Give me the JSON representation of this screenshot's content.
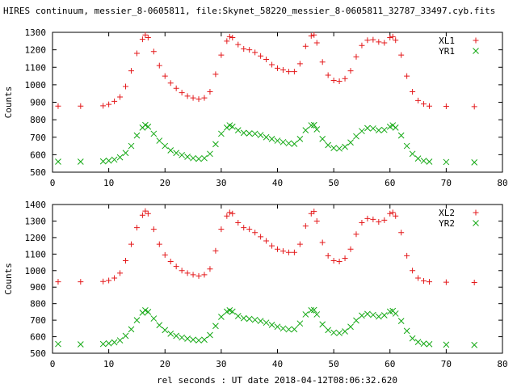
{
  "figure": {
    "title": "HIRES continuum, messier_8-0605811, file:Skynet_58220_messier_8-0605811_32787_33497.cyb.fits",
    "xlabel": "rel seconds : UT date 2018-04-12T08:06:32.620"
  },
  "colors": {
    "red": "#e41a1c",
    "green": "#13a813"
  },
  "chart_data": [
    {
      "type": "scatter",
      "ylabel": "Counts",
      "xlim": [
        0,
        80
      ],
      "ylim": [
        500,
        1300
      ],
      "xticks": [
        0,
        10,
        20,
        30,
        40,
        50,
        60,
        70,
        80
      ],
      "yticks": [
        500,
        600,
        700,
        800,
        900,
        1000,
        1100,
        1200,
        1300
      ],
      "grid": false,
      "legend_position": "top-right",
      "series": [
        {
          "name": "XL1",
          "marker": "plus",
          "color": "#e41a1c",
          "points": [
            [
              1,
              878
            ],
            [
              5,
              878
            ],
            [
              9,
              880
            ],
            [
              10,
              888
            ],
            [
              11,
              905
            ],
            [
              12,
              930
            ],
            [
              13,
              990
            ],
            [
              14,
              1080
            ],
            [
              15,
              1180
            ],
            [
              16,
              1260
            ],
            [
              16.5,
              1285
            ],
            [
              17,
              1270
            ],
            [
              18,
              1190
            ],
            [
              19,
              1110
            ],
            [
              20,
              1050
            ],
            [
              21,
              1010
            ],
            [
              22,
              980
            ],
            [
              23,
              955
            ],
            [
              24,
              935
            ],
            [
              25,
              925
            ],
            [
              26,
              918
            ],
            [
              27,
              925
            ],
            [
              28,
              960
            ],
            [
              29,
              1060
            ],
            [
              30,
              1170
            ],
            [
              31,
              1250
            ],
            [
              31.5,
              1275
            ],
            [
              32,
              1270
            ],
            [
              33,
              1230
            ],
            [
              34,
              1205
            ],
            [
              35,
              1200
            ],
            [
              36,
              1185
            ],
            [
              37,
              1165
            ],
            [
              38,
              1145
            ],
            [
              39,
              1115
            ],
            [
              40,
              1095
            ],
            [
              41,
              1085
            ],
            [
              42,
              1075
            ],
            [
              43,
              1075
            ],
            [
              44,
              1120
            ],
            [
              45,
              1220
            ],
            [
              46,
              1280
            ],
            [
              46.5,
              1285
            ],
            [
              47,
              1240
            ],
            [
              48,
              1130
            ],
            [
              49,
              1055
            ],
            [
              50,
              1025
            ],
            [
              51,
              1020
            ],
            [
              52,
              1035
            ],
            [
              53,
              1080
            ],
            [
              54,
              1160
            ],
            [
              55,
              1225
            ],
            [
              56,
              1255
            ],
            [
              57,
              1258
            ],
            [
              58,
              1245
            ],
            [
              59,
              1240
            ],
            [
              60,
              1270
            ],
            [
              60.5,
              1275
            ],
            [
              61,
              1255
            ],
            [
              62,
              1170
            ],
            [
              63,
              1050
            ],
            [
              64,
              960
            ],
            [
              65,
              910
            ],
            [
              66,
              890
            ],
            [
              67,
              878
            ],
            [
              70,
              877
            ],
            [
              75,
              875
            ]
          ]
        },
        {
          "name": "YR1",
          "marker": "x",
          "color": "#13a813",
          "points": [
            [
              1,
              560
            ],
            [
              5,
              560
            ],
            [
              9,
              562
            ],
            [
              10,
              566
            ],
            [
              11,
              572
            ],
            [
              12,
              585
            ],
            [
              13,
              610
            ],
            [
              14,
              650
            ],
            [
              15,
              710
            ],
            [
              16,
              755
            ],
            [
              16.5,
              770
            ],
            [
              17,
              760
            ],
            [
              18,
              720
            ],
            [
              19,
              680
            ],
            [
              20,
              650
            ],
            [
              21,
              625
            ],
            [
              22,
              610
            ],
            [
              23,
              598
            ],
            [
              24,
              588
            ],
            [
              25,
              580
            ],
            [
              26,
              576
            ],
            [
              27,
              580
            ],
            [
              28,
              605
            ],
            [
              29,
              660
            ],
            [
              30,
              720
            ],
            [
              31,
              755
            ],
            [
              31.5,
              768
            ],
            [
              32,
              760
            ],
            [
              33,
              740
            ],
            [
              34,
              725
            ],
            [
              35,
              722
            ],
            [
              36,
              720
            ],
            [
              37,
              712
            ],
            [
              38,
              700
            ],
            [
              39,
              690
            ],
            [
              40,
              680
            ],
            [
              41,
              672
            ],
            [
              42,
              665
            ],
            [
              43,
              662
            ],
            [
              44,
              690
            ],
            [
              45,
              740
            ],
            [
              46,
              768
            ],
            [
              46.5,
              770
            ],
            [
              47,
              745
            ],
            [
              48,
              690
            ],
            [
              49,
              655
            ],
            [
              50,
              638
            ],
            [
              51,
              635
            ],
            [
              52,
              645
            ],
            [
              53,
              670
            ],
            [
              54,
              705
            ],
            [
              55,
              735
            ],
            [
              56,
              752
            ],
            [
              57,
              750
            ],
            [
              58,
              740
            ],
            [
              59,
              742
            ],
            [
              60,
              760
            ],
            [
              60.5,
              768
            ],
            [
              61,
              755
            ],
            [
              62,
              710
            ],
            [
              63,
              650
            ],
            [
              64,
              605
            ],
            [
              65,
              578
            ],
            [
              66,
              565
            ],
            [
              67,
              560
            ],
            [
              70,
              558
            ],
            [
              75,
              556
            ]
          ]
        }
      ]
    },
    {
      "type": "scatter",
      "ylabel": "Counts",
      "xlim": [
        0,
        80
      ],
      "ylim": [
        500,
        1400
      ],
      "xticks": [
        0,
        10,
        20,
        30,
        40,
        50,
        60,
        70,
        80
      ],
      "yticks": [
        500,
        600,
        700,
        800,
        900,
        1000,
        1100,
        1200,
        1300,
        1400
      ],
      "grid": false,
      "legend_position": "top-right",
      "series": [
        {
          "name": "XL2",
          "marker": "plus",
          "color": "#e41a1c",
          "points": [
            [
              1,
              932
            ],
            [
              5,
              932
            ],
            [
              9,
              934
            ],
            [
              10,
              940
            ],
            [
              11,
              955
            ],
            [
              12,
              985
            ],
            [
              13,
              1060
            ],
            [
              14,
              1160
            ],
            [
              15,
              1260
            ],
            [
              16,
              1335
            ],
            [
              16.5,
              1360
            ],
            [
              17,
              1345
            ],
            [
              18,
              1250
            ],
            [
              19,
              1160
            ],
            [
              20,
              1095
            ],
            [
              21,
              1055
            ],
            [
              22,
              1025
            ],
            [
              23,
              1000
            ],
            [
              24,
              985
            ],
            [
              25,
              975
            ],
            [
              26,
              968
            ],
            [
              27,
              975
            ],
            [
              28,
              1010
            ],
            [
              29,
              1120
            ],
            [
              30,
              1250
            ],
            [
              31,
              1330
            ],
            [
              31.5,
              1352
            ],
            [
              32,
              1345
            ],
            [
              33,
              1290
            ],
            [
              34,
              1260
            ],
            [
              35,
              1250
            ],
            [
              36,
              1230
            ],
            [
              37,
              1205
            ],
            [
              38,
              1180
            ],
            [
              39,
              1150
            ],
            [
              40,
              1130
            ],
            [
              41,
              1118
            ],
            [
              42,
              1110
            ],
            [
              43,
              1110
            ],
            [
              44,
              1160
            ],
            [
              45,
              1270
            ],
            [
              46,
              1345
            ],
            [
              46.5,
              1358
            ],
            [
              47,
              1300
            ],
            [
              48,
              1170
            ],
            [
              49,
              1090
            ],
            [
              50,
              1060
            ],
            [
              51,
              1055
            ],
            [
              52,
              1075
            ],
            [
              53,
              1130
            ],
            [
              54,
              1220
            ],
            [
              55,
              1290
            ],
            [
              56,
              1315
            ],
            [
              57,
              1310
            ],
            [
              58,
              1295
            ],
            [
              59,
              1305
            ],
            [
              60,
              1345
            ],
            [
              60.5,
              1352
            ],
            [
              61,
              1330
            ],
            [
              62,
              1230
            ],
            [
              63,
              1090
            ],
            [
              64,
              1000
            ],
            [
              65,
              955
            ],
            [
              66,
              938
            ],
            [
              67,
              932
            ],
            [
              70,
              930
            ],
            [
              75,
              928
            ]
          ]
        },
        {
          "name": "YR2",
          "marker": "x",
          "color": "#13a813",
          "points": [
            [
              1,
              556
            ],
            [
              5,
              554
            ],
            [
              9,
              556
            ],
            [
              10,
              560
            ],
            [
              11,
              566
            ],
            [
              12,
              578
            ],
            [
              13,
              605
            ],
            [
              14,
              645
            ],
            [
              15,
              700
            ],
            [
              16,
              745
            ],
            [
              16.5,
              760
            ],
            [
              17,
              750
            ],
            [
              18,
              710
            ],
            [
              19,
              670
            ],
            [
              20,
              640
            ],
            [
              21,
              618
            ],
            [
              22,
              605
            ],
            [
              23,
              595
            ],
            [
              24,
              588
            ],
            [
              25,
              582
            ],
            [
              26,
              578
            ],
            [
              27,
              582
            ],
            [
              28,
              610
            ],
            [
              29,
              665
            ],
            [
              30,
              720
            ],
            [
              31,
              752
            ],
            [
              31.5,
              760
            ],
            [
              32,
              752
            ],
            [
              33,
              725
            ],
            [
              34,
              712
            ],
            [
              35,
              708
            ],
            [
              36,
              702
            ],
            [
              37,
              695
            ],
            [
              38,
              685
            ],
            [
              39,
              672
            ],
            [
              40,
              660
            ],
            [
              41,
              650
            ],
            [
              42,
              644
            ],
            [
              43,
              645
            ],
            [
              44,
              680
            ],
            [
              45,
              735
            ],
            [
              46,
              760
            ],
            [
              46.5,
              762
            ],
            [
              47,
              735
            ],
            [
              48,
              675
            ],
            [
              49,
              640
            ],
            [
              50,
              625
            ],
            [
              51,
              622
            ],
            [
              52,
              632
            ],
            [
              53,
              660
            ],
            [
              54,
              698
            ],
            [
              55,
              728
            ],
            [
              56,
              738
            ],
            [
              57,
              732
            ],
            [
              58,
              722
            ],
            [
              59,
              730
            ],
            [
              60,
              752
            ],
            [
              60.5,
              756
            ],
            [
              61,
              740
            ],
            [
              62,
              695
            ],
            [
              63,
              635
            ],
            [
              64,
              590
            ],
            [
              65,
              568
            ],
            [
              66,
              558
            ],
            [
              67,
              555
            ],
            [
              70,
              552
            ],
            [
              75,
              550
            ]
          ]
        }
      ]
    }
  ]
}
